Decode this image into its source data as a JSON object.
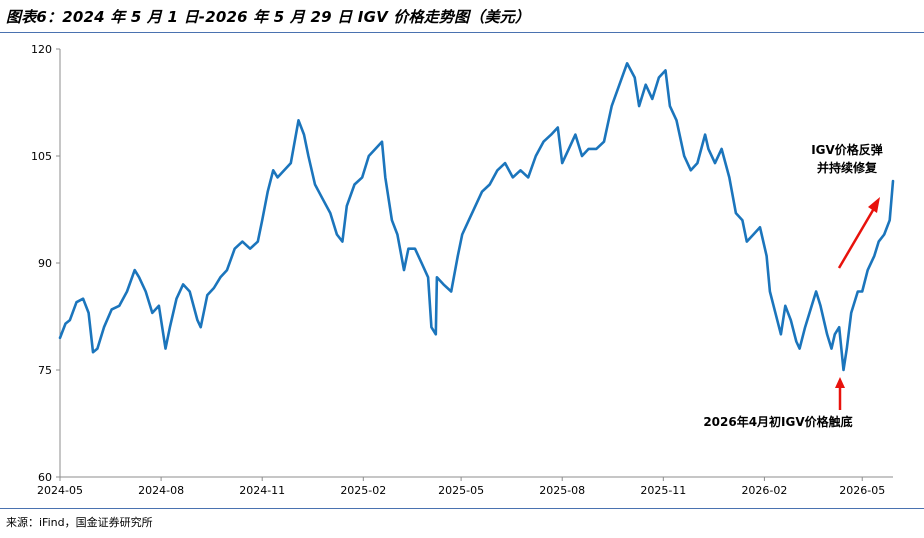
{
  "title": "图表6：2024 年 5 月 1 日-2026 年 5 月 29 日 IGV 价格走势图（美元）",
  "source": "来源：iFind，国金证券研究所",
  "colors": {
    "line": "#1b75bc",
    "arrow": "#e8120c",
    "rule": "#4a72b0",
    "axis": "#8c8c8c"
  },
  "chart_data": {
    "type": "line",
    "title": "",
    "xlabel": "",
    "ylabel": "",
    "ylim": [
      60,
      120
    ],
    "yticks": [
      60,
      75,
      90,
      105,
      120
    ],
    "grid": false,
    "x_tick_labels": [
      "2024-05",
      "2024-08",
      "2024-11",
      "2025-02",
      "2025-05",
      "2025-08",
      "2025-11",
      "2026-02",
      "2026-05"
    ],
    "x_tick_dates": [
      "2024-05-01",
      "2024-08-01",
      "2024-11-01",
      "2025-02-01",
      "2025-05-01",
      "2025-08-01",
      "2025-11-01",
      "2026-02-01",
      "2026-05-01"
    ],
    "x_range": [
      "2024-05-01",
      "2026-05-29"
    ],
    "series": [
      {
        "values": [
          [
            "2024-05-01",
            79.5
          ],
          [
            "2024-05-06",
            81.5
          ],
          [
            "2024-05-10",
            82
          ],
          [
            "2024-05-16",
            84.5
          ],
          [
            "2024-05-22",
            85
          ],
          [
            "2024-05-27",
            83
          ],
          [
            "2024-05-31",
            77.5
          ],
          [
            "2024-06-04",
            78
          ],
          [
            "2024-06-10",
            81
          ],
          [
            "2024-06-17",
            83.5
          ],
          [
            "2024-06-24",
            84
          ],
          [
            "2024-07-01",
            86
          ],
          [
            "2024-07-08",
            89
          ],
          [
            "2024-07-12",
            88
          ],
          [
            "2024-07-18",
            86
          ],
          [
            "2024-07-24",
            83
          ],
          [
            "2024-07-30",
            84
          ],
          [
            "2024-08-05",
            78
          ],
          [
            "2024-08-09",
            81
          ],
          [
            "2024-08-15",
            85
          ],
          [
            "2024-08-21",
            87
          ],
          [
            "2024-08-27",
            86
          ],
          [
            "2024-09-03",
            82
          ],
          [
            "2024-09-06",
            81
          ],
          [
            "2024-09-12",
            85.5
          ],
          [
            "2024-09-18",
            86.5
          ],
          [
            "2024-09-24",
            88
          ],
          [
            "2024-09-30",
            89
          ],
          [
            "2024-10-07",
            92
          ],
          [
            "2024-10-14",
            93
          ],
          [
            "2024-10-21",
            92
          ],
          [
            "2024-10-28",
            93
          ],
          [
            "2024-11-01",
            96
          ],
          [
            "2024-11-06",
            100
          ],
          [
            "2024-11-11",
            103
          ],
          [
            "2024-11-15",
            102
          ],
          [
            "2024-11-21",
            103
          ],
          [
            "2024-11-27",
            104
          ],
          [
            "2024-12-04",
            110
          ],
          [
            "2024-12-09",
            108
          ],
          [
            "2024-12-13",
            105
          ],
          [
            "2024-12-19",
            101
          ],
          [
            "2024-12-26",
            99
          ],
          [
            "2025-01-02",
            97
          ],
          [
            "2025-01-08",
            94
          ],
          [
            "2025-01-13",
            93
          ],
          [
            "2025-01-17",
            98
          ],
          [
            "2025-01-24",
            101
          ],
          [
            "2025-01-31",
            102
          ],
          [
            "2025-02-06",
            105
          ],
          [
            "2025-02-12",
            106
          ],
          [
            "2025-02-18",
            107
          ],
          [
            "2025-02-21",
            102
          ],
          [
            "2025-02-27",
            96
          ],
          [
            "2025-03-04",
            94
          ],
          [
            "2025-03-10",
            89
          ],
          [
            "2025-03-14",
            92
          ],
          [
            "2025-03-20",
            92
          ],
          [
            "2025-03-26",
            90
          ],
          [
            "2025-04-01",
            88
          ],
          [
            "2025-04-04",
            81
          ],
          [
            "2025-04-08",
            80
          ],
          [
            "2025-04-09",
            88
          ],
          [
            "2025-04-15",
            87
          ],
          [
            "2025-04-22",
            86
          ],
          [
            "2025-04-28",
            91
          ],
          [
            "2025-05-02",
            94
          ],
          [
            "2025-05-08",
            96
          ],
          [
            "2025-05-14",
            98
          ],
          [
            "2025-05-20",
            100
          ],
          [
            "2025-05-27",
            101
          ],
          [
            "2025-06-03",
            103
          ],
          [
            "2025-06-10",
            104
          ],
          [
            "2025-06-17",
            102
          ],
          [
            "2025-06-24",
            103
          ],
          [
            "2025-07-01",
            102
          ],
          [
            "2025-07-08",
            105
          ],
          [
            "2025-07-15",
            107
          ],
          [
            "2025-07-22",
            108
          ],
          [
            "2025-07-28",
            109
          ],
          [
            "2025-08-01",
            104
          ],
          [
            "2025-08-07",
            106
          ],
          [
            "2025-08-13",
            108
          ],
          [
            "2025-08-19",
            105
          ],
          [
            "2025-08-25",
            106
          ],
          [
            "2025-09-01",
            106
          ],
          [
            "2025-09-08",
            107
          ],
          [
            "2025-09-15",
            112
          ],
          [
            "2025-09-22",
            115
          ],
          [
            "2025-09-29",
            118
          ],
          [
            "2025-10-06",
            116
          ],
          [
            "2025-10-10",
            112
          ],
          [
            "2025-10-16",
            115
          ],
          [
            "2025-10-22",
            113
          ],
          [
            "2025-10-28",
            116
          ],
          [
            "2025-11-03",
            117
          ],
          [
            "2025-11-07",
            112
          ],
          [
            "2025-11-13",
            110
          ],
          [
            "2025-11-20",
            105
          ],
          [
            "2025-11-26",
            103
          ],
          [
            "2025-12-02",
            104
          ],
          [
            "2025-12-09",
            108
          ],
          [
            "2025-12-12",
            106
          ],
          [
            "2025-12-18",
            104
          ],
          [
            "2025-12-24",
            106
          ],
          [
            "2025-12-31",
            102
          ],
          [
            "2026-01-06",
            97
          ],
          [
            "2026-01-12",
            96
          ],
          [
            "2026-01-16",
            93
          ],
          [
            "2026-01-22",
            94
          ],
          [
            "2026-01-28",
            95
          ],
          [
            "2026-02-03",
            91
          ],
          [
            "2026-02-06",
            86
          ],
          [
            "2026-02-11",
            83
          ],
          [
            "2026-02-16",
            80
          ],
          [
            "2026-02-20",
            84
          ],
          [
            "2026-02-25",
            82
          ],
          [
            "2026-03-02",
            79
          ],
          [
            "2026-03-05",
            78
          ],
          [
            "2026-03-10",
            81
          ],
          [
            "2026-03-16",
            84
          ],
          [
            "2026-03-20",
            86
          ],
          [
            "2026-03-24",
            84
          ],
          [
            "2026-03-30",
            80
          ],
          [
            "2026-04-03",
            78
          ],
          [
            "2026-04-06",
            80
          ],
          [
            "2026-04-10",
            81
          ],
          [
            "2026-04-14",
            75
          ],
          [
            "2026-04-17",
            78
          ],
          [
            "2026-04-21",
            83
          ],
          [
            "2026-04-27",
            86
          ],
          [
            "2026-05-01",
            86
          ],
          [
            "2026-05-06",
            89
          ],
          [
            "2026-05-12",
            91
          ],
          [
            "2026-05-16",
            93
          ],
          [
            "2026-05-21",
            94
          ],
          [
            "2026-05-26",
            96
          ],
          [
            "2026-05-29",
            101.5
          ]
        ]
      }
    ],
    "annotations": [
      {
        "lines": [
          "IGV价格反弹",
          "并持续修复"
        ]
      },
      {
        "lines": [
          "2026年4月初IGV价格触底"
        ]
      }
    ]
  }
}
